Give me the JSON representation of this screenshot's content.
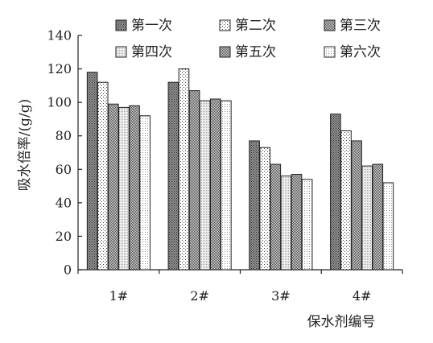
{
  "chart_data": {
    "type": "bar",
    "categories": [
      "1#",
      "2#",
      "3#",
      "4#"
    ],
    "series": [
      {
        "name": "第一次",
        "pattern": "dark-dots",
        "values": [
          118,
          112,
          77,
          93
        ]
      },
      {
        "name": "第二次",
        "pattern": "sparse-dots",
        "values": [
          112,
          120,
          73,
          83
        ]
      },
      {
        "name": "第三次",
        "pattern": "checker",
        "values": [
          99,
          107,
          63,
          77
        ]
      },
      {
        "name": "第四次",
        "pattern": "fine-light-dots",
        "values": [
          97,
          101,
          56,
          62
        ]
      },
      {
        "name": "第五次",
        "pattern": "checker",
        "values": [
          98,
          102,
          57,
          63
        ]
      },
      {
        "name": "第六次",
        "pattern": "light-dots",
        "values": [
          92,
          101,
          54,
          52
        ]
      }
    ],
    "title": "",
    "xlabel": "保水剂编号",
    "ylabel": "吸水倍率/(g/g)",
    "ylim": [
      0,
      140
    ],
    "yticks": [
      0,
      20,
      40,
      60,
      80,
      100,
      120,
      140
    ],
    "grid": false,
    "legend": "top, 2 rows x 3 columns"
  }
}
